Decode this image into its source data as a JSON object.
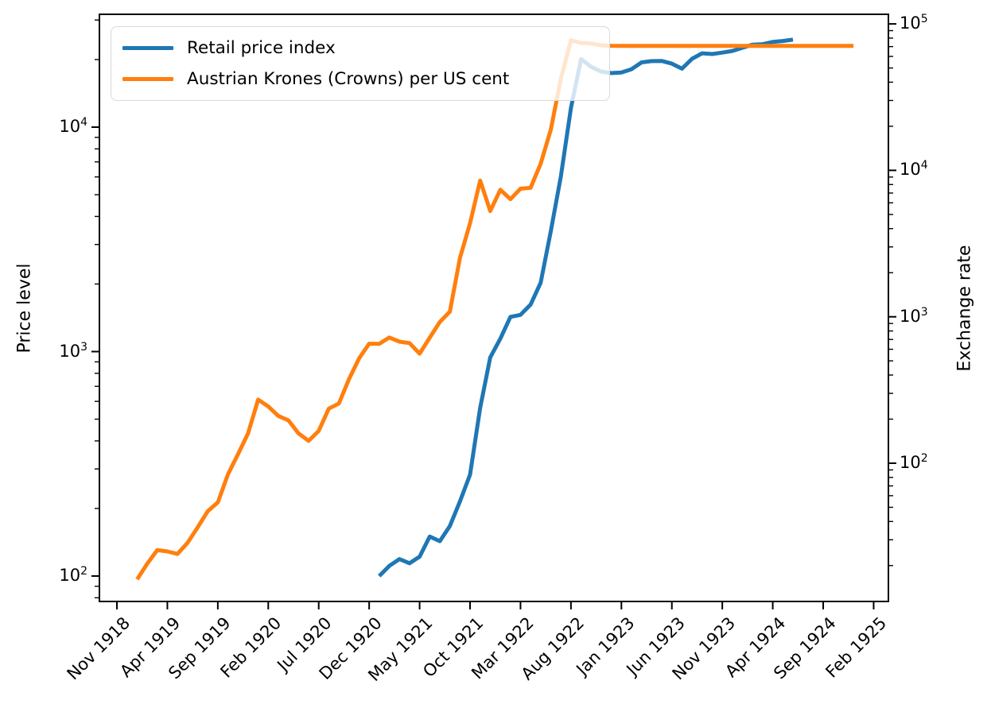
{
  "chart_data": {
    "type": "line",
    "x_axis": {
      "unit": "month",
      "tick_step_months": 5,
      "tick_labels": [
        "Nov 1918",
        "Apr 1919",
        "Sep 1919",
        "Feb 1920",
        "Jul 1920",
        "Dec 1920",
        "May 1921",
        "Oct 1921",
        "Mar 1922",
        "Aug 1922",
        "Jan 1923",
        "Jun 1923",
        "Nov 1923",
        "Apr 1924",
        "Sep 1924",
        "Feb 1925"
      ],
      "tick_label_rotation_deg": 45
    },
    "left_axis": {
      "label": "Price level",
      "scale": "log",
      "tick_exponents": [
        2,
        3,
        4
      ],
      "approx_range": [
        77,
        32000
      ]
    },
    "right_axis": {
      "label": "Exchange rate",
      "scale": "log",
      "tick_exponents": [
        2,
        3,
        4,
        5
      ],
      "approx_range": [
        11,
        116000
      ]
    },
    "legend": {
      "position": "upper left",
      "entries": [
        {
          "label": "Retail price index",
          "color": "#1f77b4"
        },
        {
          "label": "Austrian Krones (Crowns) per US cent",
          "color": "#ff7f0e"
        }
      ]
    },
    "series": [
      {
        "name": "Retail price index",
        "color": "#1f77b4",
        "axis": "left",
        "start_month": "Jan 1921",
        "months_after_nov1918_start": 26,
        "frequency": "monthly",
        "values": [
          100,
          111,
          119,
          114,
          122,
          150,
          143,
          167,
          215,
          283,
          561,
          942,
          1142,
          1428,
          1457,
          1619,
          2028,
          3431,
          6038,
          12197,
          20090,
          18567,
          17681,
          17409,
          17526,
          18119,
          19430,
          19686,
          19717,
          19184,
          18213,
          20157,
          21327,
          21170,
          21479,
          21849,
          22578,
          23309,
          23427,
          23958,
          24190,
          24527
        ]
      },
      {
        "name": "Austrian Krones (Crowns) per US cent",
        "color": "#ff7f0e",
        "axis": "right",
        "start_month": "Jan 1919",
        "months_after_nov1918_start": 2,
        "frequency": "monthly",
        "values": [
          16.1,
          20.6,
          25.5,
          25.0,
          24.0,
          28.6,
          36.5,
          47.0,
          54.0,
          83.6,
          115,
          160,
          272,
          244,
          210,
          196,
          160,
          142,
          166,
          236,
          256,
          375,
          520,
          655,
          654,
          722,
          676,
          661,
          560,
          720,
          922,
          1083,
          2520,
          4355,
          8520,
          5275,
          7375,
          6350,
          7490,
          7600,
          11100,
          18900,
          42350,
          77300,
          74210,
          73560,
          71400,
          70925,
          70810,
          70810,
          70810,
          70810,
          70810,
          70810,
          70810,
          70810,
          70810,
          70810,
          70810,
          70810,
          70760,
          70760,
          70760,
          70760,
          70760,
          70760,
          70760,
          70760,
          70760,
          70760,
          70760,
          70760
        ]
      }
    ]
  }
}
